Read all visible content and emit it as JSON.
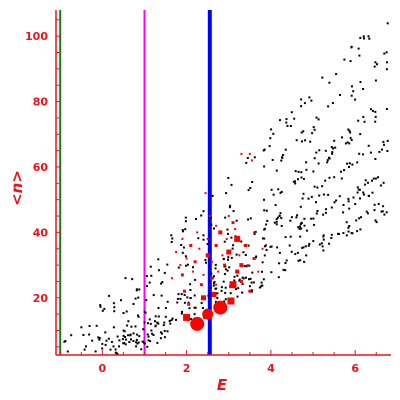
{
  "chart_data": {
    "type": "scatter",
    "xlabel": "E",
    "ylabel": "<n>",
    "xlim": [
      -1.1,
      6.85
    ],
    "ylim": [
      2.5,
      108
    ],
    "xticks": [
      0,
      2,
      4,
      6
    ],
    "yticks": [
      20,
      40,
      60,
      80,
      100
    ],
    "grid": false,
    "colors": {
      "axes": "#e8141c",
      "points_black": "#000000",
      "points_red": "#ff0000",
      "line_green": "#1a7a1a",
      "line_magenta": "#ff00ff",
      "line_blue": "#0000ff"
    },
    "vertical_lines": [
      {
        "x": -1.0,
        "color": "#1a7a1a",
        "style": "thin"
      },
      {
        "x": 1.0,
        "color": "#ff00ff",
        "style": "thin"
      },
      {
        "x": 2.55,
        "color": "#0000ff",
        "style": "thick"
      }
    ],
    "series": [
      {
        "color": "#000000",
        "marker": "dot",
        "bands": [
          {
            "x": [
              -0.9,
              6.8
            ],
            "y_start": [
              4,
              106
            ],
            "count": 70
          },
          {
            "x": [
              -0.7,
              6.8
            ],
            "y_start": [
              3,
              93
            ],
            "count": 75
          },
          {
            "x": [
              -0.4,
              6.8
            ],
            "y_start": [
              3,
              80
            ],
            "count": 90
          },
          {
            "x": [
              -0.1,
              6.8
            ],
            "y_start": [
              3,
              68
            ],
            "count": 110
          },
          {
            "x": [
              0.3,
              6.8
            ],
            "y_start": [
              4,
              58
            ],
            "count": 130
          },
          {
            "x": [
              0.8,
              6.8
            ],
            "y_start": [
              5,
              48
            ],
            "count": 120
          }
        ]
      },
      {
        "color": "#ff0000",
        "marker": "square",
        "points": [
          [
            2.25,
            12,
            14
          ],
          [
            2.8,
            17,
            14
          ],
          [
            2.5,
            15,
            11
          ],
          [
            3.05,
            19,
            7
          ],
          [
            3.1,
            24,
            7
          ],
          [
            2.0,
            14,
            7
          ],
          [
            2.4,
            20,
            5
          ],
          [
            2.65,
            21,
            5
          ],
          [
            3.2,
            28,
            4
          ],
          [
            3.3,
            30,
            4
          ],
          [
            3.0,
            34,
            5
          ],
          [
            3.2,
            38,
            6
          ],
          [
            2.8,
            40,
            4
          ],
          [
            3.1,
            43,
            3
          ],
          [
            2.5,
            33,
            4
          ],
          [
            2.2,
            31,
            3
          ],
          [
            1.9,
            27,
            3
          ],
          [
            2.6,
            26,
            3
          ],
          [
            2.1,
            36,
            3
          ],
          [
            2.7,
            36,
            3
          ],
          [
            3.4,
            36,
            3
          ],
          [
            3.6,
            32,
            3
          ],
          [
            2.9,
            30,
            3
          ],
          [
            2.35,
            24,
            3
          ],
          [
            1.95,
            22,
            3
          ],
          [
            2.05,
            18,
            3
          ],
          [
            3.5,
            22,
            3
          ],
          [
            3.3,
            25,
            3
          ],
          [
            2.55,
            45,
            2
          ],
          [
            2.45,
            52,
            2
          ],
          [
            2.7,
            42,
            2
          ],
          [
            3.0,
            45,
            2
          ],
          [
            3.3,
            64,
            2
          ],
          [
            3.5,
            64,
            2
          ],
          [
            3.55,
            62,
            2
          ],
          [
            1.75,
            34,
            2
          ],
          [
            1.85,
            30,
            2
          ],
          [
            1.65,
            26,
            2
          ],
          [
            3.7,
            28,
            2
          ],
          [
            3.8,
            35,
            2
          ],
          [
            2.25,
            40,
            2
          ],
          [
            2.95,
            38,
            2
          ],
          [
            3.15,
            41,
            2
          ],
          [
            2.85,
            33,
            2
          ],
          [
            2.15,
            28,
            2
          ],
          [
            2.4,
            27,
            2
          ],
          [
            3.45,
            30,
            2
          ],
          [
            3.25,
            33,
            2
          ],
          [
            2.6,
            31,
            2
          ],
          [
            2.75,
            28,
            2
          ],
          [
            1.9,
            38,
            2
          ],
          [
            2.3,
            35,
            2
          ],
          [
            2.0,
            32,
            2
          ],
          [
            2.7,
            24,
            2
          ],
          [
            3.6,
            40,
            2
          ],
          [
            2.5,
            38,
            2
          ]
        ]
      }
    ]
  }
}
